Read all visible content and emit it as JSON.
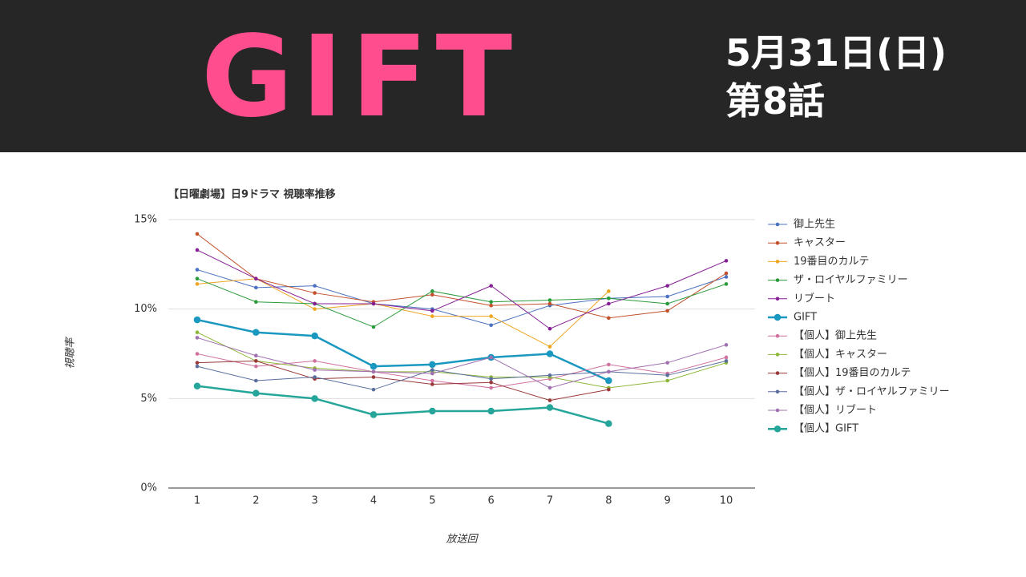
{
  "header": {
    "title": "GIFT",
    "date": "5月31日(日)",
    "episode": "第8話"
  },
  "chart_data": {
    "type": "line",
    "title": "【日曜劇場】日9ドラマ 視聴率推移",
    "x_label": "放送回",
    "y_label": "視聴率",
    "categories": [
      "1",
      "2",
      "3",
      "4",
      "5",
      "6",
      "7",
      "8",
      "9",
      "10"
    ],
    "ylim": [
      0,
      15
    ],
    "yticks": [
      {
        "value": 0,
        "label": "0%"
      },
      {
        "value": 5,
        "label": "5%"
      },
      {
        "value": 10,
        "label": "10%"
      },
      {
        "value": 15,
        "label": "15%"
      }
    ],
    "grid": true,
    "legend": "right",
    "series": [
      {
        "name": "御上先生",
        "color": "#4a72c0",
        "line_width": 1,
        "values": [
          12.2,
          11.2,
          11.3,
          10.3,
          10.0,
          9.1,
          10.2,
          10.6,
          10.7,
          11.8
        ]
      },
      {
        "name": "キャスター",
        "color": "#c2502a",
        "line_width": 1,
        "values": [
          14.2,
          11.7,
          10.9,
          10.4,
          10.8,
          10.2,
          10.3,
          9.5,
          9.9,
          12.0
        ]
      },
      {
        "name": "19番目のカルテ",
        "color": "#eea520",
        "line_width": 1,
        "values": [
          11.4,
          11.7,
          10.0,
          10.3,
          9.6,
          9.6,
          7.9,
          11.0,
          null,
          null
        ]
      },
      {
        "name": "ザ・ロイヤルファミリー",
        "color": "#2a9a3a",
        "line_width": 1,
        "values": [
          11.7,
          10.4,
          10.3,
          9.0,
          11.0,
          10.4,
          10.5,
          10.6,
          10.3,
          11.4
        ]
      },
      {
        "name": "リブート",
        "color": "#861f96",
        "line_width": 1,
        "values": [
          13.3,
          11.7,
          10.3,
          10.3,
          9.9,
          11.3,
          8.9,
          10.3,
          11.3,
          12.7
        ]
      },
      {
        "name": "GIFT",
        "color": "#1a98c0",
        "line_width": 2.5,
        "values": [
          9.4,
          8.7,
          8.5,
          6.8,
          6.9,
          7.3,
          7.5,
          6.0,
          null,
          null
        ]
      },
      {
        "name": "【個人】御上先生",
        "color": "#d0709e",
        "line_width": 1,
        "values": [
          7.5,
          6.8,
          7.1,
          6.5,
          6.0,
          5.6,
          6.1,
          6.9,
          6.4,
          7.3
        ]
      },
      {
        "name": "【個人】キャスター",
        "color": "#8db838",
        "line_width": 1,
        "values": [
          8.7,
          7.1,
          6.7,
          6.5,
          6.5,
          6.2,
          6.2,
          5.6,
          6.0,
          7.0
        ]
      },
      {
        "name": "【個人】19番目のカルテ",
        "color": "#9a3838",
        "line_width": 1,
        "values": [
          7.0,
          7.1,
          6.1,
          6.2,
          5.8,
          5.9,
          4.9,
          5.5,
          null,
          null
        ]
      },
      {
        "name": "【個人】ザ・ロイヤルファミリー",
        "color": "#5a6e9e",
        "line_width": 1,
        "values": [
          6.8,
          6.0,
          6.2,
          5.5,
          6.6,
          6.1,
          6.3,
          6.5,
          6.3,
          7.1
        ]
      },
      {
        "name": "【個人】リブート",
        "color": "#a070b0",
        "line_width": 1,
        "values": [
          8.4,
          7.4,
          6.6,
          6.5,
          6.4,
          7.3,
          5.6,
          6.5,
          7.0,
          8.0
        ]
      },
      {
        "name": "【個人】GIFT",
        "color": "#26a69a",
        "line_width": 2.5,
        "values": [
          5.7,
          5.3,
          5.0,
          4.1,
          4.3,
          4.3,
          4.5,
          3.6,
          null,
          null
        ]
      }
    ]
  }
}
